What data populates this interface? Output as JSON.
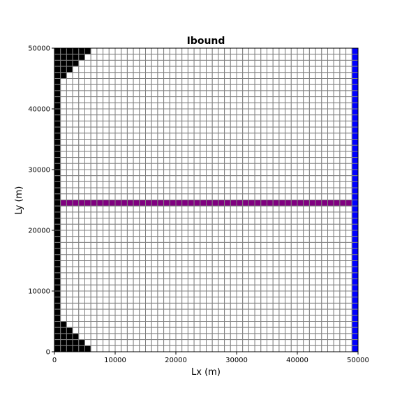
{
  "chart_data": {
    "type": "heatmap",
    "title": "Ibound",
    "xlabel": "Lx (m)",
    "ylabel": "Ly (m)",
    "xlim": [
      0,
      50000
    ],
    "ylim": [
      0,
      50000
    ],
    "x_ticks": [
      0,
      10000,
      20000,
      30000,
      40000,
      50000
    ],
    "y_ticks": [
      0,
      10000,
      20000,
      30000,
      40000,
      50000
    ],
    "grid": {
      "ncol": 50,
      "nrow": 50,
      "cell_size_m": 1000
    },
    "grid_line_color": "#808080",
    "legend": "none",
    "cell_classes": {
      "inactive": {
        "color": "#000000"
      },
      "active": {
        "color": "#ffffff"
      },
      "constant_head": {
        "color": "#0000ff"
      },
      "river": {
        "color": "#800080"
      }
    },
    "inactive_cells_per_row_top_to_bottom": [
      6,
      5,
      4,
      3,
      2,
      1,
      1,
      1,
      1,
      1,
      1,
      1,
      1,
      1,
      1,
      1,
      1,
      1,
      1,
      1,
      1,
      1,
      1,
      1,
      1,
      1,
      1,
      1,
      1,
      1,
      1,
      1,
      1,
      1,
      1,
      1,
      1,
      1,
      1,
      1,
      1,
      1,
      1,
      1,
      1,
      2,
      3,
      4,
      5,
      6
    ],
    "constant_head_column_index": 49,
    "river_row_index_from_top": 25
  }
}
